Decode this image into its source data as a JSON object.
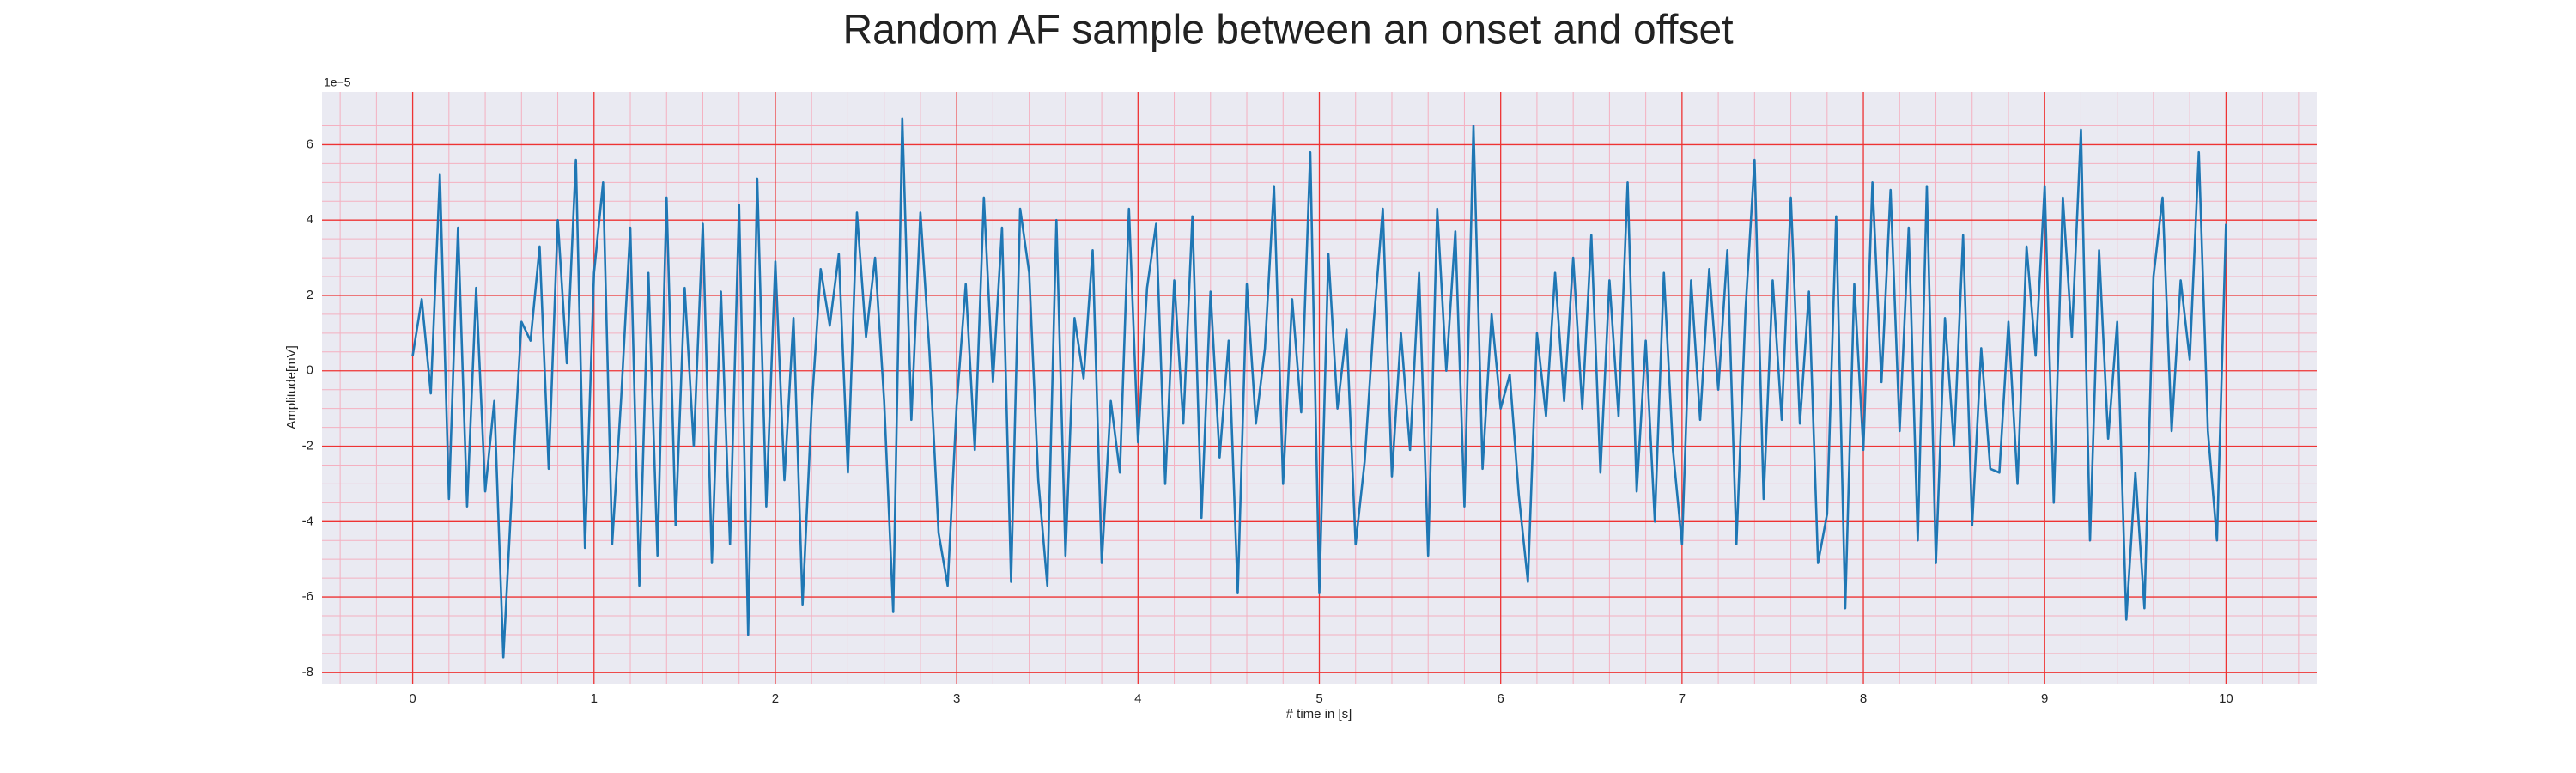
{
  "chart_data": {
    "type": "line",
    "title": "Random AF sample between an onset and offset",
    "xlabel": "# time in [s]",
    "ylabel": "Amplitude[mV]",
    "y_offset_text": "1e−5",
    "xlim": [
      -0.5,
      10.5
    ],
    "ylim": [
      -8.3,
      7.4
    ],
    "xticks": [
      0,
      1,
      2,
      3,
      4,
      5,
      6,
      7,
      8,
      9,
      10
    ],
    "yticks": [
      -8,
      -6,
      -4,
      -2,
      0,
      2,
      4,
      6
    ],
    "xminorticks": [
      -0.4,
      -0.2,
      0.2,
      0.4,
      0.6,
      0.8,
      1.2,
      1.4,
      1.6,
      1.8,
      2.2,
      2.4,
      2.6,
      2.8,
      3.2,
      3.4,
      3.6,
      3.8,
      4.2,
      4.4,
      4.6,
      4.8,
      5.2,
      5.4,
      5.6,
      5.8,
      6.2,
      6.4,
      6.6,
      6.8,
      7.2,
      7.4,
      7.6,
      7.8,
      8.2,
      8.4,
      8.6,
      8.8,
      9.2,
      9.4,
      9.6,
      9.8,
      10.2,
      10.4
    ],
    "yminorticks": [
      -7.5,
      -7,
      -6.5,
      -5.5,
      -5,
      -4.5,
      -3.5,
      -3,
      -2.5,
      -1.5,
      -1,
      -0.5,
      0.5,
      1,
      1.5,
      2.5,
      3,
      3.5,
      4.5,
      5,
      5.5,
      6.5,
      7
    ],
    "grid": true,
    "grid_color": "#ee3333",
    "minor_grid_color": "#f4b0c0",
    "background": "#eaeaf2",
    "series": [
      {
        "color": "#1f77b4",
        "x": [
          0,
          0.05,
          0.1,
          0.15,
          0.2,
          0.25,
          0.3,
          0.35,
          0.4,
          0.45,
          0.5,
          0.55,
          0.6,
          0.65,
          0.7,
          0.75,
          0.8,
          0.85,
          0.9,
          0.95,
          1,
          1.05,
          1.1,
          1.15,
          1.2,
          1.25,
          1.3,
          1.35,
          1.4,
          1.45,
          1.5,
          1.55,
          1.6,
          1.65,
          1.7,
          1.75,
          1.8,
          1.85,
          1.9,
          1.95,
          2,
          2.05,
          2.1,
          2.15,
          2.2,
          2.25,
          2.3,
          2.35,
          2.4,
          2.45,
          2.5,
          2.55,
          2.6,
          2.65,
          2.7,
          2.75,
          2.8,
          2.85,
          2.9,
          2.95,
          3,
          3.05,
          3.1,
          3.15,
          3.2,
          3.25,
          3.3,
          3.35,
          3.4,
          3.45,
          3.5,
          3.55,
          3.6,
          3.65,
          3.7,
          3.75,
          3.8,
          3.85,
          3.9,
          3.95,
          4,
          4.05,
          4.1,
          4.15,
          4.2,
          4.25,
          4.3,
          4.35,
          4.4,
          4.45,
          4.5,
          4.55,
          4.6,
          4.65,
          4.7,
          4.75,
          4.8,
          4.85,
          4.9,
          4.95,
          5,
          5.05,
          5.1,
          5.15,
          5.2,
          5.25,
          5.3,
          5.35,
          5.4,
          5.45,
          5.5,
          5.55,
          5.6,
          5.65,
          5.7,
          5.75,
          5.8,
          5.85,
          5.9,
          5.95,
          6,
          6.05,
          6.1,
          6.15,
          6.2,
          6.25,
          6.3,
          6.35,
          6.4,
          6.45,
          6.5,
          6.55,
          6.6,
          6.65,
          6.7,
          6.75,
          6.8,
          6.85,
          6.9,
          6.95,
          7,
          7.05,
          7.1,
          7.15,
          7.2,
          7.25,
          7.3,
          7.35,
          7.4,
          7.45,
          7.5,
          7.55,
          7.6,
          7.65,
          7.7,
          7.75,
          7.8,
          7.85,
          7.9,
          7.95,
          8,
          8.05,
          8.1,
          8.15,
          8.2,
          8.25,
          8.3,
          8.35,
          8.4,
          8.45,
          8.5,
          8.55,
          8.6,
          8.65,
          8.7,
          8.75,
          8.8,
          8.85,
          8.9,
          8.95,
          9,
          9.05,
          9.1,
          9.15,
          9.2,
          9.25,
          9.3,
          9.35,
          9.4,
          9.45,
          9.5,
          9.55,
          9.6,
          9.65,
          9.7,
          9.75,
          9.8,
          9.85,
          9.9,
          9.95,
          10
        ],
        "values": [
          0.4,
          1.9,
          -0.6,
          5.2,
          -3.4,
          3.8,
          -3.6,
          2.2,
          -3.2,
          -0.8,
          -7.6,
          -2.9,
          1.3,
          0.8,
          3.3,
          -2.6,
          4.0,
          0.2,
          5.6,
          -4.7,
          2.6,
          5.0,
          -4.6,
          -0.7,
          3.8,
          -5.7,
          2.6,
          -4.9,
          4.6,
          -4.1,
          2.2,
          -2.0,
          3.9,
          -5.1,
          2.1,
          -4.6,
          4.4,
          -7.0,
          5.1,
          -3.6,
          2.9,
          -2.9,
          1.4,
          -6.2,
          -1.0,
          2.7,
          1.2,
          3.1,
          -2.7,
          4.2,
          0.9,
          3.0,
          -0.8,
          -6.4,
          6.7,
          -1.3,
          4.2,
          0.5,
          -4.3,
          -5.7,
          -0.9,
          2.3,
          -2.1,
          4.6,
          -0.3,
          3.8,
          -5.6,
          4.3,
          2.6,
          -2.9,
          -5.7,
          4.0,
          -4.9,
          1.4,
          -0.2,
          3.2,
          -5.1,
          -0.8,
          -2.7,
          4.3,
          -1.9,
          2.2,
          3.9,
          -3.0,
          2.4,
          -1.4,
          4.1,
          -3.9,
          2.1,
          -2.3,
          0.8,
          -5.9,
          2.3,
          -1.4,
          0.6,
          4.9,
          -3.0,
          1.9,
          -1.1,
          5.8,
          -5.9,
          3.1,
          -1.0,
          1.1,
          -4.6,
          -2.4,
          1.3,
          4.3,
          -2.8,
          1.0,
          -2.1,
          2.6,
          -4.9,
          4.3,
          0.0,
          3.7,
          -3.6,
          6.5,
          -2.6,
          1.5,
          -1.0,
          -0.1,
          -3.3,
          -5.6,
          1.0,
          -1.2,
          2.6,
          -0.8,
          3.0,
          -1.0,
          3.6,
          -2.7,
          2.4,
          -1.2,
          5.0,
          -3.2,
          0.8,
          -4.0,
          2.6,
          -2.1,
          -4.6,
          2.4,
          -1.3,
          2.7,
          -0.5,
          3.2,
          -4.6,
          1.6,
          5.6,
          -3.4,
          2.4,
          -1.3,
          4.6,
          -1.4,
          2.1,
          -5.1,
          -3.8,
          4.1,
          -6.3,
          2.3,
          -2.1,
          5.0,
          -0.3,
          4.8,
          -1.6,
          3.8,
          -4.5,
          4.9,
          -5.1,
          1.4,
          -2.0,
          3.6,
          -4.1,
          0.6,
          -2.6,
          -2.7,
          1.3,
          -3.0,
          3.3,
          0.4,
          4.9,
          -3.5,
          4.6,
          0.9,
          6.4,
          -4.5,
          3.2,
          -1.8,
          1.3,
          -6.6,
          -2.7,
          -6.3,
          2.5,
          4.6,
          -1.6,
          2.4,
          0.3,
          5.8,
          -1.6,
          -4.5,
          3.9
        ]
      }
    ]
  }
}
